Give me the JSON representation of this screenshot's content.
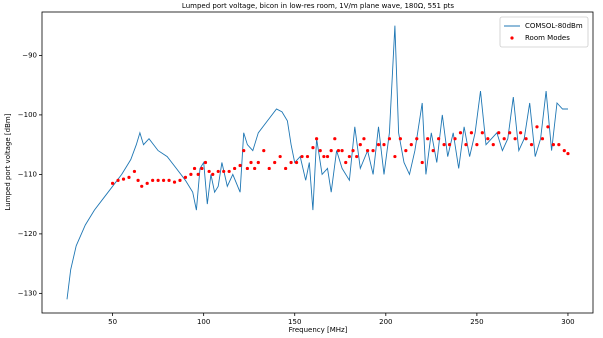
{
  "chart_data": {
    "type": "line",
    "title": "Lumped port voltage, bicon in low-res room, 1V/m plane wave, 180Ω, 551 pts",
    "x_label": "Frequency [MHz]",
    "y_label": "Lumped port voltage [dBm]",
    "xlim": [
      11.25,
      313.75
    ],
    "xticks": [
      50,
      100,
      150,
      200,
      250,
      300
    ],
    "ylim": [
      -133.3,
      -82.7
    ],
    "yticks": [
      {
        "value": -130,
        "label": "−130"
      },
      {
        "value": -120,
        "label": "−120"
      },
      {
        "value": -110,
        "label": "−110"
      },
      {
        "value": -100,
        "label": "−100"
      },
      {
        "value": -90,
        "label": "−90"
      }
    ],
    "legend": "upper right",
    "series": [
      {
        "name": "COMSOL-80dBm",
        "type": "line",
        "color": "#1f77b4",
        "x": [
          25,
          27,
          30,
          35,
          40,
          45,
          50,
          55,
          60,
          63,
          65,
          67,
          70,
          75,
          80,
          85,
          90,
          94,
          96,
          98,
          100,
          102,
          104,
          106,
          108,
          110,
          113,
          116,
          120,
          122,
          124,
          127,
          130,
          135,
          140,
          143,
          146,
          148,
          150,
          153,
          156,
          158,
          160,
          162,
          165,
          168,
          170,
          173,
          176,
          180,
          183,
          186,
          190,
          193,
          196,
          199,
          202,
          205,
          207,
          210,
          213,
          216,
          220,
          222,
          225,
          228,
          231,
          234,
          237,
          240,
          243,
          246,
          249,
          252,
          255,
          258,
          261,
          264,
          267,
          270,
          273,
          276,
          279,
          282,
          285,
          288,
          291,
          294,
          297,
          300
        ],
        "values": [
          -131,
          -126,
          -122,
          -118.5,
          -116,
          -114,
          -112,
          -110,
          -107.5,
          -105,
          -103,
          -105,
          -104,
          -106,
          -107,
          -109,
          -111,
          -113,
          -116,
          -109,
          -108,
          -115,
          -110,
          -113,
          -112,
          -108,
          -112,
          -110,
          -113,
          -103,
          -105,
          -106,
          -103,
          -101,
          -99,
          -99.5,
          -101,
          -105,
          -108,
          -107,
          -111,
          -108,
          -116,
          -104,
          -110,
          -109,
          -113,
          -106,
          -109,
          -111,
          -102,
          -109,
          -106,
          -110,
          -102,
          -110,
          -103,
          -85,
          -103,
          -108,
          -110,
          -106,
          -98,
          -110,
          -103,
          -108,
          -100,
          -107,
          -103,
          -109,
          -102,
          -107,
          -103,
          -96,
          -105,
          -104,
          -103,
          -106,
          -104,
          -97,
          -106,
          -104,
          -98,
          -107,
          -104,
          -96,
          -106,
          -98,
          -99,
          -99
        ]
      },
      {
        "name": "Room Modes",
        "type": "scatter",
        "color": "#ff0000",
        "x": [
          50,
          53,
          56,
          59,
          62,
          64,
          66,
          69,
          72,
          75,
          78,
          81,
          84,
          87,
          90,
          93,
          95,
          97,
          99,
          101,
          103,
          105,
          108,
          111,
          114,
          117,
          120,
          122,
          124,
          126,
          128,
          130,
          133,
          136,
          139,
          142,
          145,
          148,
          151,
          154,
          157,
          160,
          162,
          164,
          166,
          168,
          170,
          172,
          174,
          176,
          178,
          180,
          182,
          184,
          186,
          188,
          190,
          193,
          196,
          199,
          202,
          205,
          208,
          211,
          214,
          217,
          220,
          223,
          226,
          229,
          232,
          235,
          238,
          241,
          244,
          247,
          250,
          253,
          256,
          259,
          262,
          265,
          268,
          271,
          274,
          277,
          280,
          283,
          286,
          289,
          292,
          295,
          298,
          300
        ],
        "values": [
          -111.5,
          -111,
          -110.8,
          -110.5,
          -109.5,
          -111,
          -112,
          -111.5,
          -111,
          -111,
          -111,
          -111,
          -111.3,
          -111,
          -110.5,
          -110,
          -109,
          -110,
          -109,
          -108,
          -109.5,
          -110,
          -109.5,
          -109.5,
          -109.5,
          -109,
          -108.5,
          -106,
          -109,
          -108,
          -109,
          -108,
          -106,
          -109,
          -108,
          -107,
          -109,
          -108,
          -108,
          -107,
          -107,
          -105.5,
          -104,
          -106,
          -107,
          -107,
          -106,
          -104,
          -106,
          -106,
          -108,
          -107,
          -106,
          -107,
          -105,
          -104,
          -106,
          -106,
          -105,
          -105,
          -104,
          -107,
          -104,
          -106,
          -105,
          -104,
          -108,
          -104,
          -106,
          -104,
          -105,
          -105,
          -104,
          -103,
          -105,
          -103,
          -105,
          -103,
          -104,
          -105,
          -103,
          -104,
          -103,
          -104,
          -103,
          -104,
          -105,
          -102,
          -104,
          -102,
          -105,
          -105,
          -106,
          -106.5
        ]
      }
    ]
  }
}
